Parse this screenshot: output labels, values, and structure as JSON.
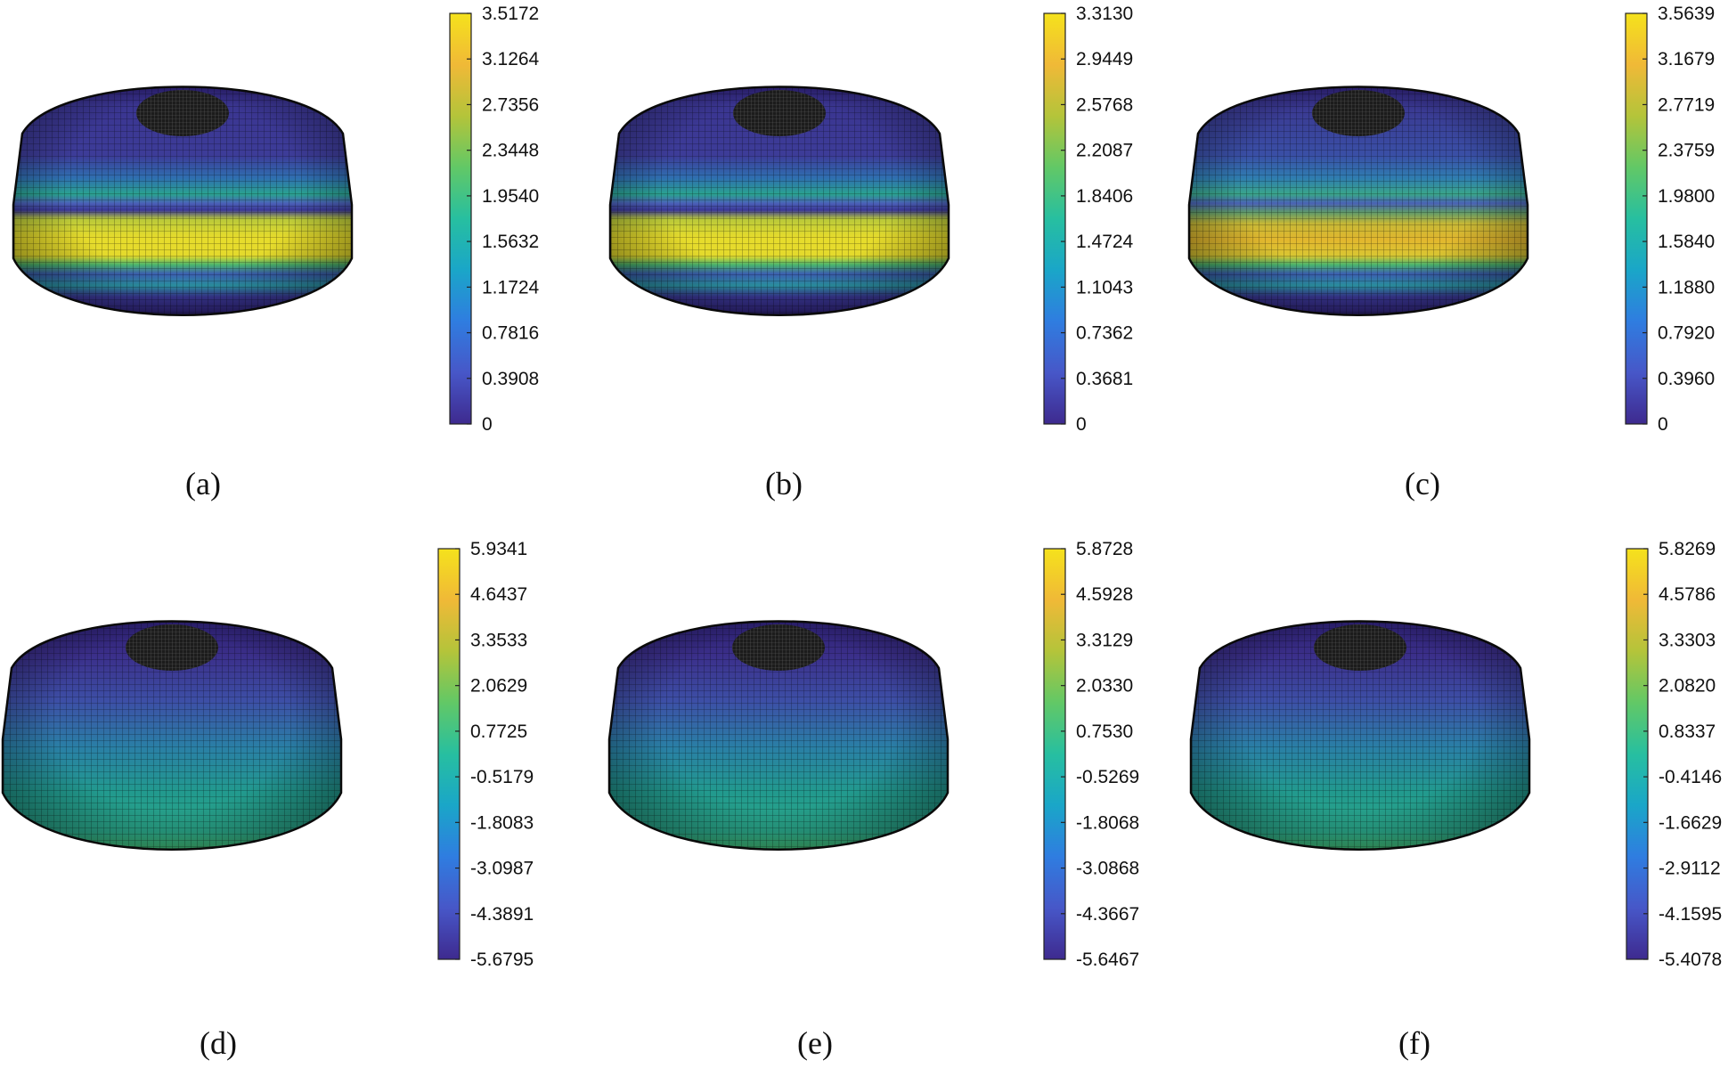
{
  "figure": {
    "colormap": [
      "#3e2a8f",
      "#4757c8",
      "#2f7de0",
      "#1aa6c8",
      "#27bfa0",
      "#62c866",
      "#b4c43a",
      "#f0b937",
      "#f5e21c"
    ],
    "shell_color_low": "#35308a",
    "shell_color_band": "#e8de2a",
    "hole_color": "#1c1c1c",
    "panels": [
      {
        "caption": "(a)",
        "pattern": "banded",
        "colorbar": {
          "max": "3.5172",
          "min": "0",
          "ticks": [
            "3.5172",
            "3.1264",
            "2.7356",
            "2.3448",
            "1.9540",
            "1.5632",
            "1.1724",
            "0.7816",
            "0.3908",
            "0"
          ]
        }
      },
      {
        "caption": "(b)",
        "pattern": "banded",
        "colorbar": {
          "max": "3.3130",
          "min": "0",
          "ticks": [
            "3.3130",
            "2.9449",
            "2.5768",
            "2.2087",
            "1.8406",
            "1.4724",
            "1.1043",
            "0.7362",
            "0.3681",
            "0"
          ]
        }
      },
      {
        "caption": "(c)",
        "pattern": "banded-noisy",
        "colorbar": {
          "max": "3.5639",
          "min": "0",
          "ticks": [
            "3.5639",
            "3.1679",
            "2.7719",
            "2.3759",
            "1.9800",
            "1.5840",
            "1.1880",
            "0.7920",
            "0.3960",
            "0"
          ]
        }
      },
      {
        "caption": "(d)",
        "pattern": "gradient",
        "colorbar": {
          "max": "5.9341",
          "min": "-5.6795",
          "ticks": [
            "5.9341",
            "4.6437",
            "3.3533",
            "2.0629",
            "0.7725",
            "-0.5179",
            "-1.8083",
            "-3.0987",
            "-4.3891",
            "-5.6795"
          ]
        }
      },
      {
        "caption": "(e)",
        "pattern": "gradient",
        "colorbar": {
          "max": "5.8728",
          "min": "-5.6467",
          "ticks": [
            "5.8728",
            "4.5928",
            "3.3129",
            "2.0330",
            "0.7530",
            "-0.5269",
            "-1.8068",
            "-3.0868",
            "-4.3667",
            "-5.6467"
          ]
        }
      },
      {
        "caption": "(f)",
        "pattern": "gradient",
        "colorbar": {
          "max": "5.8269",
          "min": "-5.4078",
          "ticks": [
            "5.8269",
            "4.5786",
            "3.3303",
            "2.0820",
            "0.8337",
            "-0.4146",
            "-1.6629",
            "-2.9112",
            "-4.1595",
            "-5.4078"
          ]
        }
      }
    ]
  }
}
